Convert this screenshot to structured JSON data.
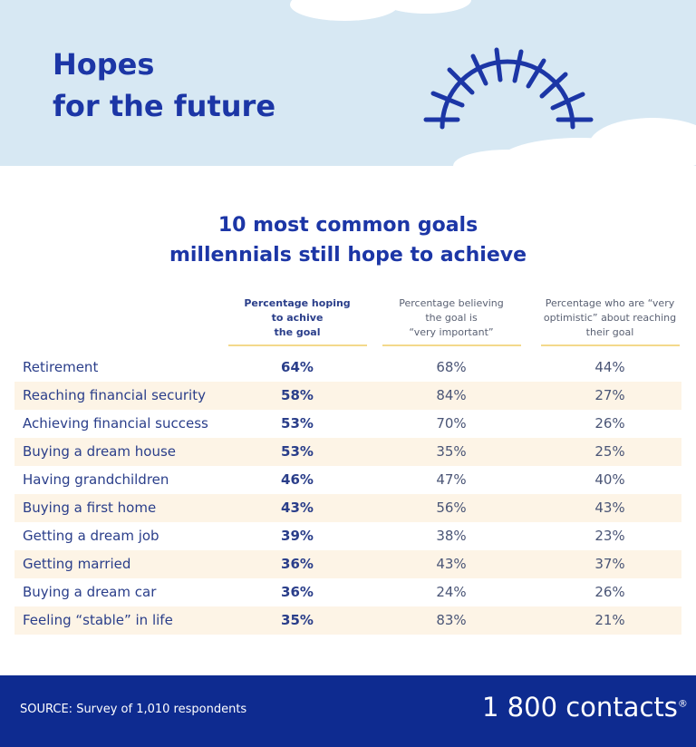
{
  "header": {
    "title_lines": [
      "Hopes",
      "for the future"
    ]
  },
  "table": {
    "title_lines": [
      "10 most common goals",
      "millennials still hope to achieve"
    ],
    "columns": [
      [
        "Percentage hoping",
        "to achive",
        "the goal"
      ],
      [
        "Percentage believing",
        "the goal is",
        "“very important”"
      ],
      [
        "Percentage who are “very",
        "optimistic” about reaching",
        "their goal"
      ]
    ],
    "rows": [
      [
        "Retirement",
        "64%",
        "68%",
        "44%"
      ],
      [
        "Reaching financial security",
        "58%",
        "84%",
        "27%"
      ],
      [
        "Achieving financial success",
        "53%",
        "70%",
        "26%"
      ],
      [
        "Buying a dream house",
        "53%",
        "35%",
        "25%"
      ],
      [
        "Having grandchildren",
        "46%",
        "47%",
        "40%"
      ],
      [
        "Buying a first home",
        "43%",
        "56%",
        "43%"
      ],
      [
        "Getting a dream job",
        "39%",
        "38%",
        "23%"
      ],
      [
        "Getting married",
        "36%",
        "43%",
        "37%"
      ],
      [
        "Buying a dream car",
        "36%",
        "24%",
        "26%"
      ],
      [
        "Feeling “stable” in life",
        "35%",
        "83%",
        "21%"
      ]
    ]
  },
  "footer": {
    "source": "SOURCE: Survey of 1,010 respondents",
    "logo": "1 800 contacts",
    "logo_mark": "®"
  }
}
